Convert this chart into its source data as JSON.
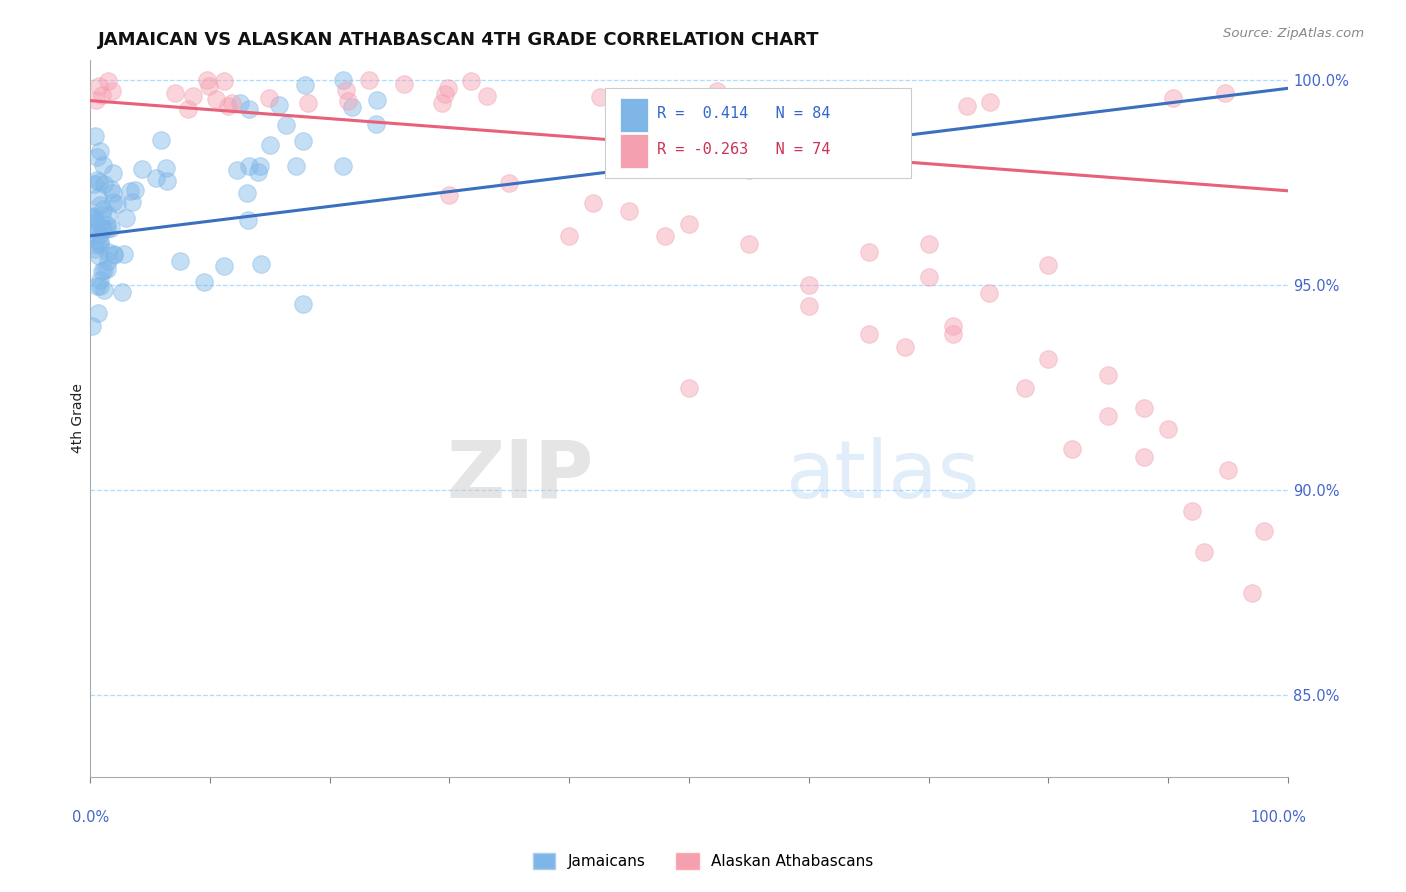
{
  "title": "JAMAICAN VS ALASKAN ATHABASCAN 4TH GRADE CORRELATION CHART",
  "source": "Source: ZipAtlas.com",
  "ylabel": "4th Grade",
  "legend_blue_label": "Jamaicans",
  "legend_pink_label": "Alaskan Athabascans",
  "r_blue": 0.414,
  "n_blue": 84,
  "r_pink": -0.263,
  "n_pink": 74,
  "blue_color": "#7EB6E8",
  "pink_color": "#F4A0B0",
  "blue_line_color": "#3B6FBF",
  "pink_line_color": "#E8607A",
  "bg_color": "#FFFFFF",
  "ymin": 83.0,
  "ymax": 100.5,
  "xmin": 0.0,
  "xmax": 100.0,
  "yticks": [
    85.0,
    90.0,
    95.0,
    100.0
  ],
  "blue_line_y0": 96.2,
  "blue_line_y1": 99.8,
  "pink_line_y0": 99.5,
  "pink_line_y1": 97.3
}
